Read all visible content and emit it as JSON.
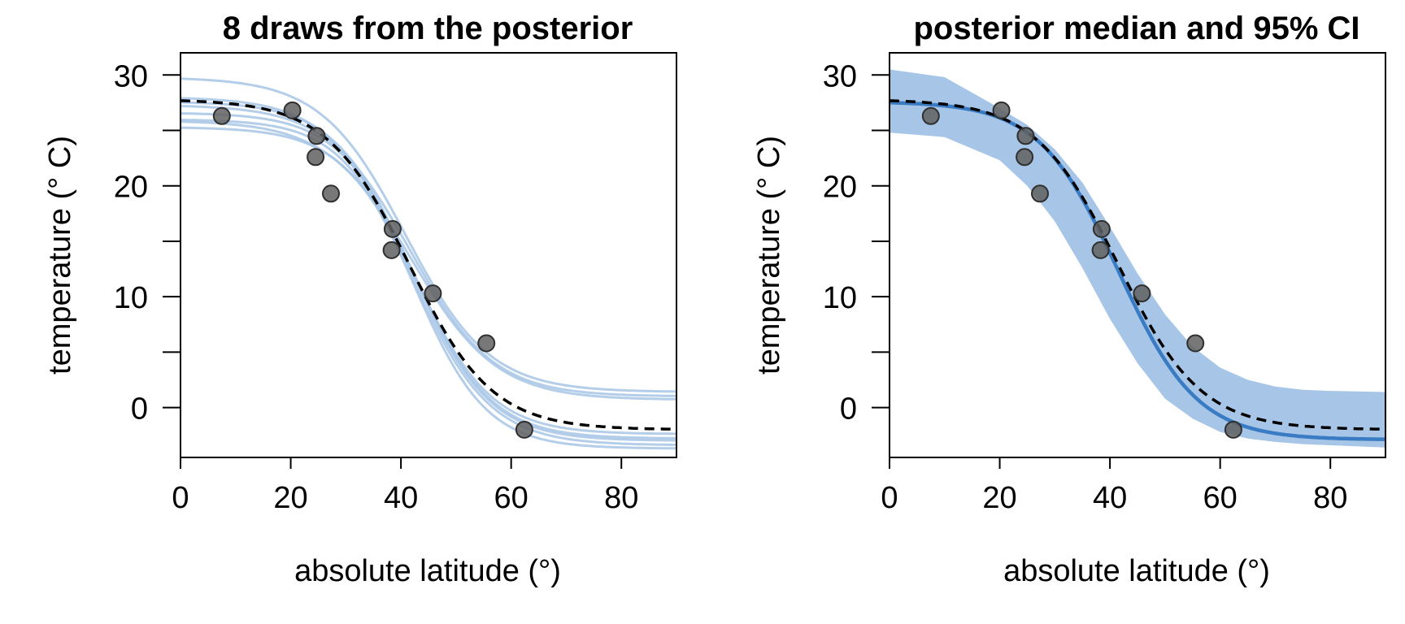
{
  "chart_data": [
    {
      "type": "line",
      "title": "8 draws from the posterior",
      "xlabel": "absolute latitude (°)",
      "ylabel": "temperature (° C)",
      "xlim": [
        0,
        90
      ],
      "ylim": [
        -4.5,
        32
      ],
      "xticks": [
        0,
        20,
        40,
        60,
        80
      ],
      "yticks": [
        0,
        10,
        20,
        30
      ],
      "yminor_ticks": [
        5,
        15,
        25
      ],
      "grid": false,
      "points": {
        "x": [
          7.5,
          20.3,
          24.7,
          24.5,
          27.3,
          38.5,
          38.3,
          45.8,
          55.5,
          62.4
        ],
        "y": [
          26.3,
          26.8,
          24.5,
          22.6,
          19.3,
          16.1,
          14.2,
          10.3,
          5.8,
          -2.0
        ],
        "color": "#606060"
      },
      "series": [
        {
          "style": "draw",
          "params": [
            28.0,
            -3.4,
            41.5,
            7.2
          ],
          "color": "#a7c5e6"
        },
        {
          "style": "draw",
          "params": [
            27.6,
            -3.0,
            42.0,
            7.0
          ],
          "color": "#a7c5e6"
        },
        {
          "style": "draw",
          "params": [
            26.6,
            -2.8,
            42.5,
            6.9
          ],
          "color": "#a7c5e6"
        },
        {
          "style": "draw",
          "params": [
            26.0,
            -3.7,
            42.3,
            6.6
          ],
          "color": "#a7c5e6"
        },
        {
          "style": "draw",
          "params": [
            25.3,
            -2.4,
            42.8,
            6.9
          ],
          "color": "#a7c5e6"
        },
        {
          "style": "draw",
          "params": [
            29.8,
            1.4,
            40.8,
            7.6
          ],
          "color": "#a7c5e6"
        },
        {
          "style": "draw",
          "params": [
            25.9,
            0.7,
            42.0,
            7.7
          ],
          "color": "#a7c5e6"
        },
        {
          "style": "draw",
          "params": [
            27.3,
            1.0,
            41.7,
            7.5
          ],
          "color": "#a7c5e6"
        },
        {
          "style": "median",
          "params": [
            27.8,
            -2.0,
            41.5,
            7.5
          ],
          "color": "#000000",
          "dashed": true
        }
      ]
    },
    {
      "type": "line",
      "title": "posterior median and 95% CI",
      "xlabel": "absolute latitude (°)",
      "ylabel": "temperature (° C)",
      "xlim": [
        0,
        90
      ],
      "ylim": [
        -4.5,
        32
      ],
      "xticks": [
        0,
        20,
        40,
        60,
        80
      ],
      "yticks": [
        0,
        10,
        20,
        30
      ],
      "yminor_ticks": [
        5,
        15,
        25
      ],
      "grid": false,
      "points": {
        "x": [
          7.5,
          20.3,
          24.7,
          24.5,
          27.3,
          38.5,
          38.3,
          45.8,
          55.5,
          62.4
        ],
        "y": [
          26.3,
          26.8,
          24.5,
          22.6,
          19.3,
          16.1,
          14.2,
          10.3,
          5.8,
          -2.0
        ],
        "color": "#606060"
      },
      "band": {
        "x": [
          0,
          10,
          20,
          25,
          30,
          35,
          40,
          45,
          50,
          55,
          60,
          65,
          70,
          75,
          80,
          90
        ],
        "lower": [
          24.8,
          24.4,
          22.3,
          20.0,
          16.8,
          12.6,
          8.0,
          4.0,
          0.8,
          -1.0,
          -2.2,
          -2.8,
          -3.1,
          -3.3,
          -3.4,
          -3.6
        ],
        "upper": [
          30.5,
          29.8,
          27.0,
          25.5,
          23.3,
          20.3,
          16.3,
          12.1,
          8.4,
          5.5,
          3.6,
          2.5,
          1.9,
          1.6,
          1.5,
          1.4
        ],
        "color": "#a7c5e6"
      },
      "series": [
        {
          "style": "median-fit",
          "params": [
            27.6,
            -2.9,
            41.5,
            7.2
          ],
          "color": "#3a7cc3"
        },
        {
          "style": "median",
          "params": [
            27.8,
            -2.0,
            41.5,
            7.5
          ],
          "color": "#000000",
          "dashed": true
        }
      ]
    }
  ]
}
